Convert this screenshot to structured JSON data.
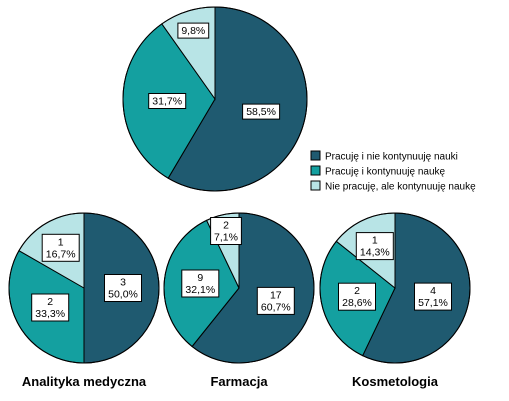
{
  "chart_data": [
    {
      "type": "pie",
      "title": "",
      "slices": [
        {
          "category": "Pracuję i nie kontynuuję nauki",
          "label": "58,5%",
          "value": 58.5
        },
        {
          "category": "Pracuję i kontynuuję naukę",
          "label": "31,7%",
          "value": 31.7
        },
        {
          "category": "Nie pracuję, ale kontynuuję naukę",
          "label": "9,8%",
          "value": 9.8
        }
      ]
    },
    {
      "type": "pie",
      "title": "Analityka medyczna",
      "slices": [
        {
          "category": "Pracuję i nie kontynuuję nauki",
          "count": "3",
          "label": "50,0%",
          "value": 50.0
        },
        {
          "category": "Pracuję i kontynuuję naukę",
          "count": "2",
          "label": "33,3%",
          "value": 33.3
        },
        {
          "category": "Nie pracuję, ale kontynuuję naukę",
          "count": "1",
          "label": "16,7%",
          "value": 16.7
        }
      ]
    },
    {
      "type": "pie",
      "title": "Farmacja",
      "slices": [
        {
          "category": "Pracuję i nie kontynuuję nauki",
          "count": "17",
          "label": "60,7%",
          "value": 60.7
        },
        {
          "category": "Pracuję i kontynuuję naukę",
          "count": "9",
          "label": "32,1%",
          "value": 32.1
        },
        {
          "category": "Nie pracuję, ale kontynuuję naukę",
          "count": "2",
          "label": "7,1%",
          "value": 7.1
        }
      ]
    },
    {
      "type": "pie",
      "title": "Kosmetologia",
      "slices": [
        {
          "category": "Pracuję i nie kontynuuję nauki",
          "count": "4",
          "label": "57,1%",
          "value": 57.1
        },
        {
          "category": "Pracuję i kontynuuję naukę",
          "count": "2",
          "label": "28,6%",
          "value": 28.6
        },
        {
          "category": "Nie pracuję, ale kontynuuję naukę",
          "count": "1",
          "label": "14,3%",
          "value": 14.3
        }
      ]
    }
  ],
  "legend": {
    "placement": "right",
    "items": [
      {
        "label": "Pracuję i nie kontynuuję nauki",
        "color": "#1f5a70"
      },
      {
        "label": "Pracuję i kontynuuję naukę",
        "color": "#14a0a0"
      },
      {
        "label": "Nie pracuję, ale kontynuuję naukę",
        "color": "#b8e4e6"
      }
    ]
  },
  "colors": {
    "slice_stroke": "#000000",
    "label_box": "#ffffff",
    "text": "#000000"
  }
}
